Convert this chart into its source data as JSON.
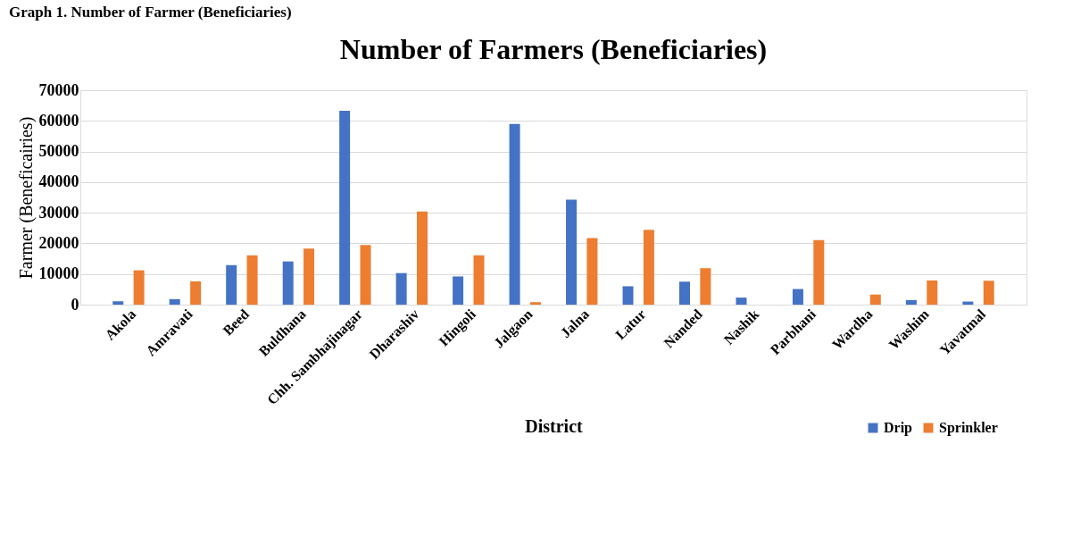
{
  "chart_data": {
    "type": "bar",
    "title": "Number of Farmers (Beneficiaries)",
    "xlabel": "District",
    "ylabel": "Farmer (Beneficairies)",
    "annotations": [
      "Graph 1. Number of Farmer (Beneficiaries)"
    ],
    "categories": [
      "Akola",
      "Amravati",
      "Beed",
      "Buldhana",
      "Chh. Sambhajinagar",
      "Dharashiv",
      "Hingoli",
      "Jalgaon",
      "Jalna",
      "Latur",
      "Nanded",
      "Nashik",
      "Parbhani",
      "Wardha",
      "Washim",
      "Yavatmal"
    ],
    "series": [
      {
        "name": "Drip",
        "color": "#4472c4",
        "values": [
          1100,
          1800,
          12900,
          14100,
          63300,
          10300,
          9200,
          59000,
          34300,
          6000,
          7500,
          2300,
          5100,
          0,
          1500,
          1000
        ]
      },
      {
        "name": "Sprinkler",
        "color": "#ed7d31",
        "values": [
          11200,
          7600,
          16100,
          18300,
          19500,
          30400,
          16100,
          800,
          21700,
          24400,
          11900,
          0,
          21100,
          3300,
          7900,
          7800
        ]
      }
    ],
    "ylim": [
      0,
      70000
    ],
    "yticks": [
      0,
      10000,
      20000,
      30000,
      40000,
      50000,
      60000,
      70000
    ],
    "grid": "y",
    "legend": "bottom right"
  }
}
